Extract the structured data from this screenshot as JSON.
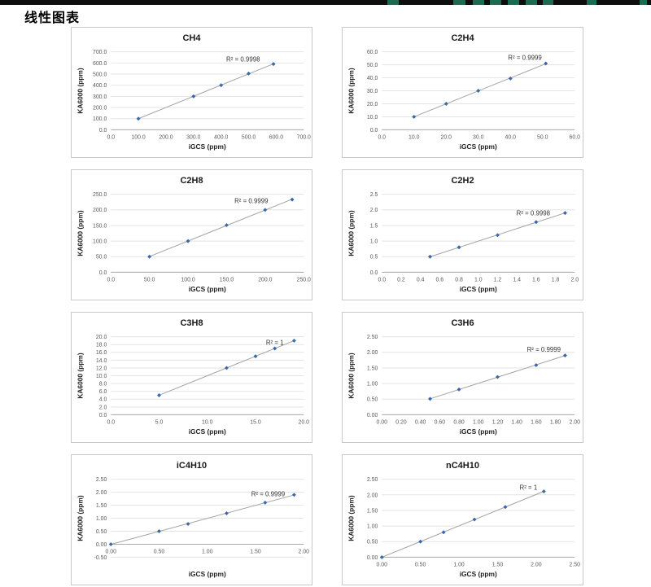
{
  "page": {
    "title": "线性图表"
  },
  "top_bar": {
    "background": "#0e0e0e",
    "accent_color": "#1b6b53",
    "accent_segments": [
      [
        476,
        14
      ],
      [
        557,
        15
      ],
      [
        581,
        14
      ],
      [
        602,
        14
      ],
      [
        624,
        14
      ],
      [
        646,
        14
      ],
      [
        667,
        13
      ],
      [
        721,
        12
      ],
      [
        786,
        9
      ]
    ]
  },
  "chart_style": {
    "marker_color": "#3a67ae",
    "trend_color": "#a3a3a3",
    "grid_color": "#e3e3e3",
    "axis_color": "#ababab",
    "tick_text_color": "#595959"
  },
  "chart_data": [
    {
      "type": "scatter",
      "title": "CH4",
      "r2_label": "R² = 0.9998",
      "r2_at": [
        480,
        613
      ],
      "xlabel": "iGCS (ppm)",
      "ylabel": "KA6000 (ppm)",
      "xlim": [
        0,
        700
      ],
      "xstep": 100,
      "ylim": [
        0,
        700
      ],
      "ystep": 100,
      "decimals": 1,
      "xaxis_at": 0,
      "grid": true,
      "legend": "none",
      "x": [
        100,
        300,
        400,
        500,
        590
      ],
      "y": [
        100,
        300,
        400,
        505,
        590
      ]
    },
    {
      "type": "scatter",
      "title": "C2H4",
      "r2_label": "R² = 0.9999",
      "r2_at": [
        44.5,
        53.8
      ],
      "xlabel": "iGCS (ppm)",
      "ylabel": "KA6000 (ppm)",
      "xlim": [
        0,
        60
      ],
      "xstep": 10,
      "ylim": [
        0,
        60
      ],
      "ystep": 10,
      "decimals": 1,
      "xaxis_at": 0,
      "grid": true,
      "legend": "none",
      "x": [
        10,
        20,
        30,
        40,
        51
      ],
      "y": [
        10,
        20,
        30,
        39.5,
        51
      ]
    },
    {
      "type": "scatter",
      "title": "C2H8",
      "r2_label": "R² = 0.9999",
      "r2_at": [
        182,
        222
      ],
      "xlabel": "iGCS (ppm)",
      "ylabel": "KA6000 (ppm)",
      "xlim": [
        0,
        250
      ],
      "xstep": 50,
      "ylim": [
        0,
        250
      ],
      "ystep": 50,
      "decimals": 1,
      "xaxis_at": 0,
      "grid": true,
      "legend": "none",
      "x": [
        50,
        100,
        150,
        200,
        235
      ],
      "y": [
        50,
        100,
        151,
        200,
        233
      ]
    },
    {
      "type": "scatter",
      "title": "C2H2",
      "r2_label": "R² = 0.9998",
      "r2_at": [
        1.57,
        1.82
      ],
      "xlabel": "iGCS (ppm)",
      "ylabel": "KA6000 (ppm)",
      "xlim": [
        0,
        2.0
      ],
      "xstep": 0.2,
      "ylim": [
        0,
        2.5
      ],
      "ystep": 0.5,
      "decimals": 1,
      "xaxis_at": 0,
      "grid": true,
      "legend": "none",
      "x": [
        0.5,
        0.8,
        1.2,
        1.6,
        1.9
      ],
      "y": [
        0.5,
        0.8,
        1.19,
        1.61,
        1.9
      ]
    },
    {
      "type": "scatter",
      "title": "C3H8",
      "r2_label": "R² = 1",
      "r2_at": [
        17,
        17.9
      ],
      "xlabel": "iGCS (ppm)",
      "ylabel": "KA6000 (ppm)",
      "xlim": [
        0,
        20
      ],
      "xstep": 5,
      "ylim": [
        0,
        20
      ],
      "ystep": 2,
      "decimals": 1,
      "xaxis_at": 0,
      "grid": true,
      "legend": "none",
      "x": [
        5,
        12,
        15,
        17,
        19
      ],
      "y": [
        5,
        12,
        15,
        17,
        19
      ]
    },
    {
      "type": "scatter",
      "title": "C3H6",
      "r2_label": "R² = 0.9999",
      "r2_at": [
        1.68,
        2.02
      ],
      "xlabel": "iGCS (ppm)",
      "ylabel": "KA6000 (ppm)",
      "xlim": [
        0,
        2.0
      ],
      "xstep": 0.2,
      "ylim": [
        0,
        2.5
      ],
      "ystep": 0.5,
      "decimals": 2,
      "xaxis_at": 0,
      "grid": true,
      "legend": "none",
      "x": [
        0.5,
        0.8,
        1.2,
        1.6,
        1.9
      ],
      "y": [
        0.51,
        0.81,
        1.21,
        1.59,
        1.9
      ]
    },
    {
      "type": "scatter",
      "title": "iC4H10",
      "r2_label": "R² = 0.9999",
      "r2_at": [
        1.63,
        1.85
      ],
      "xlabel": "iGCS (ppm)",
      "ylabel": "KA6000 (ppm)",
      "xlim": [
        0,
        2.0
      ],
      "xstep": 0.5,
      "ylim": [
        -0.5,
        2.5
      ],
      "ystep": 0.5,
      "decimals": 2,
      "xaxis_at": 0,
      "grid": true,
      "legend": "none",
      "x": [
        0,
        0.5,
        0.8,
        1.2,
        1.6,
        1.9
      ],
      "y": [
        0,
        0.5,
        0.78,
        1.19,
        1.6,
        1.9
      ]
    },
    {
      "type": "scatter",
      "title": "nC4H10",
      "r2_label": "R² = 1",
      "r2_at": [
        1.9,
        2.17
      ],
      "xlabel": "iGCS (ppm)",
      "ylabel": "KA6000 (ppm)",
      "xlim": [
        0,
        2.5
      ],
      "xstep": 0.5,
      "ylim": [
        0,
        2.5
      ],
      "ystep": 0.5,
      "decimals": 2,
      "xaxis_at": 0,
      "grid": true,
      "legend": "none",
      "x": [
        0,
        0.5,
        0.8,
        1.2,
        1.6,
        2.1
      ],
      "y": [
        0,
        0.5,
        0.8,
        1.21,
        1.61,
        2.11
      ]
    }
  ]
}
